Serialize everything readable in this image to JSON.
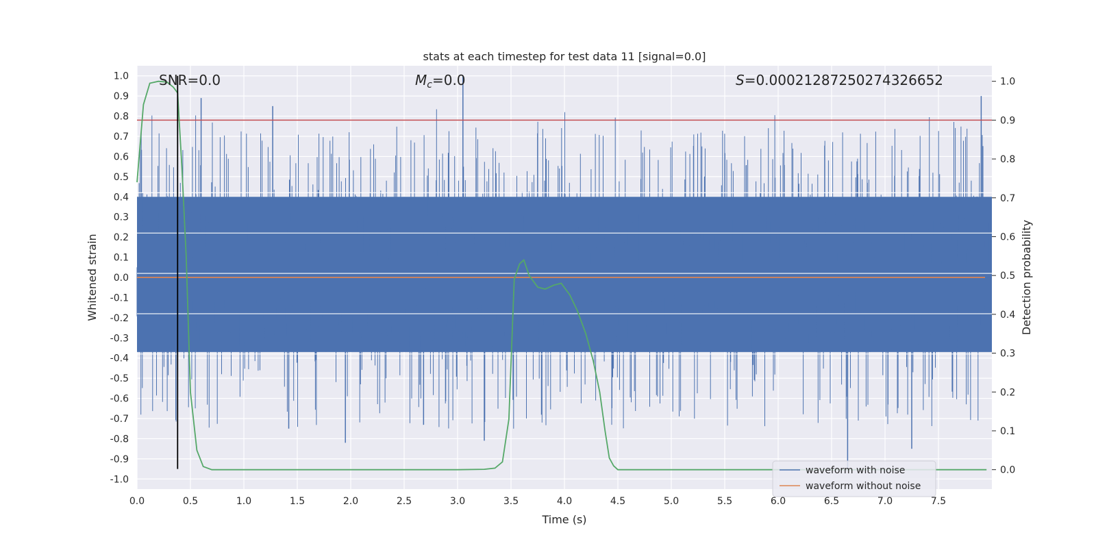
{
  "chart_data": {
    "type": "line",
    "title": "stats at each timestep for test data 11 [signal=0.0]",
    "xlabel": "Time (s)",
    "ylabel_left": "Whitened strain",
    "ylabel_right": "Detection probability",
    "xlim": [
      0.0,
      8.0
    ],
    "ylim_left": [
      -1.05,
      1.05
    ],
    "ylim_right": [
      -0.05,
      1.04
    ],
    "x_ticks": [
      0.0,
      0.5,
      1.0,
      1.5,
      2.0,
      2.5,
      3.0,
      3.5,
      4.0,
      4.5,
      5.0,
      5.5,
      6.0,
      6.5,
      7.0,
      7.5
    ],
    "x_tick_labels": [
      "0.0",
      "0.5",
      "1.0",
      "1.5",
      "2.0",
      "2.5",
      "3.0",
      "3.5",
      "4.0",
      "4.5",
      "5.0",
      "5.5",
      "6.0",
      "6.5",
      "7.0",
      "7.5"
    ],
    "y_ticks_left": [
      1.0,
      0.9,
      0.8,
      0.7,
      0.6,
      0.5,
      0.4,
      0.3,
      0.2,
      0.1,
      0.0,
      -0.1,
      -0.2,
      -0.3,
      -0.4,
      -0.5,
      -0.6,
      -0.7,
      -0.8,
      -0.9,
      -1.0
    ],
    "y_tick_labels_left": [
      "1.0",
      "0.9",
      "0.8",
      "0.7",
      "0.6",
      "0.5",
      "0.4",
      "0.3",
      "0.2",
      "0.1",
      "0.0",
      "-0.1",
      "-0.2",
      "-0.3",
      "-0.4",
      "-0.5",
      "-0.6",
      "-0.7",
      "-0.8",
      "-0.9",
      "-1.0"
    ],
    "y_ticks_right": [
      1.0,
      0.9,
      0.8,
      0.7,
      0.6,
      0.5,
      0.4,
      0.3,
      0.2,
      0.1,
      0.0
    ],
    "y_tick_labels_right": [
      "1.0",
      "0.9",
      "0.8",
      "0.7",
      "0.6",
      "0.5",
      "0.4",
      "0.3",
      "0.2",
      "0.1",
      "0.0"
    ],
    "grid": true,
    "annotations": {
      "snr": "SNR=0.0",
      "mc": "M",
      "mc_sub": "c",
      "mc_value": "=0.0",
      "s": "S",
      "s_value": "=0.00021287250274326652"
    },
    "legend": {
      "placement": "lower-right",
      "entries": [
        "waveform with noise",
        "waveform without noise"
      ]
    },
    "threshold": {
      "axis": "right",
      "value": 0.9,
      "color": "#c44e52"
    },
    "vline": {
      "x": 0.38,
      "color": "#000000"
    },
    "series": [
      {
        "name": "waveform with noise",
        "axis": "left",
        "color": "#4c72b0",
        "style": "noise",
        "core_envelope": 0.4,
        "peak_max": 1.0,
        "trough_min": -0.9
      },
      {
        "name": "waveform without noise",
        "axis": "left",
        "color": "#dd8452",
        "x": [
          0.0,
          8.0
        ],
        "y": [
          0.0,
          0.0
        ]
      },
      {
        "name": "",
        "axis": "right",
        "color": "#55a868",
        "x": [
          0.0,
          0.06,
          0.12,
          0.2,
          0.28,
          0.34,
          0.38,
          0.42,
          0.46,
          0.5,
          0.56,
          0.62,
          0.7,
          1.0,
          2.0,
          3.0,
          3.25,
          3.35,
          3.42,
          3.48,
          3.53,
          3.58,
          3.62,
          3.67,
          3.75,
          3.82,
          3.9,
          3.97,
          4.05,
          4.12,
          4.2,
          4.27,
          4.33,
          4.38,
          4.42,
          4.46,
          4.5,
          5.0,
          6.0,
          7.0,
          7.95
        ],
        "y": [
          0.74,
          0.94,
          0.995,
          1.0,
          0.998,
          0.985,
          0.97,
          0.78,
          0.55,
          0.2,
          0.05,
          0.008,
          0.0,
          0.0,
          0.0,
          0.0,
          0.001,
          0.004,
          0.02,
          0.13,
          0.49,
          0.53,
          0.54,
          0.5,
          0.47,
          0.465,
          0.475,
          0.48,
          0.45,
          0.41,
          0.35,
          0.28,
          0.2,
          0.1,
          0.03,
          0.01,
          0.0,
          0.0,
          0.0,
          0.0,
          0.0
        ]
      }
    ]
  }
}
